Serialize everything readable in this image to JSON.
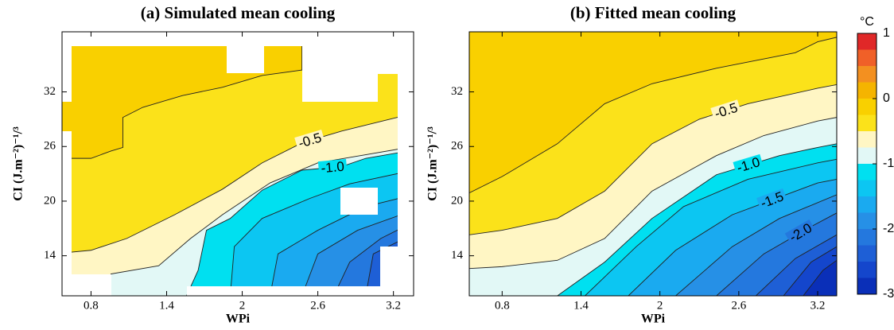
{
  "chart_data": [
    {
      "type": "contour",
      "title": "(a) Simulated mean cooling",
      "xlabel": "WPi",
      "ylabel": "CI (J.m⁻²)⁻¹/³",
      "xlim": [
        0.57,
        3.36
      ],
      "ylim": [
        9.6,
        38.6
      ],
      "xticks": [
        0.8,
        1.4,
        2,
        2.6,
        3.2
      ],
      "yticks": [
        14,
        20,
        26,
        32
      ],
      "contours": [
        {
          "level": -0.25,
          "x": [
            0.57,
            0.8,
            0.958,
            1.053,
            1.053,
            1.21,
            1.526,
            1.842,
            2.158,
            2.474,
            2.474,
            3.36
          ],
          "y": [
            24.7,
            24.7,
            25.5,
            25.9,
            29.2,
            30.3,
            31.6,
            32.5,
            33.8,
            34.4,
            38.6,
            38.6
          ]
        },
        {
          "level": -0.5,
          "x": [
            0.57,
            0.8,
            1.084,
            1.463,
            1.842,
            2.158,
            2.474,
            2.79,
            3.232,
            3.36
          ],
          "y": [
            14.3,
            14.6,
            15.9,
            18.5,
            21.3,
            24.2,
            26.4,
            27.7,
            29.2,
            29.5
          ]
        },
        {
          "level": -0.75,
          "x": [
            0.958,
            0.958,
            1.337,
            1.59,
            1.842,
            2.221,
            2.6,
            2.98,
            3.36
          ],
          "y": [
            9.6,
            12,
            12.9,
            15.9,
            18.5,
            22,
            24.2,
            25.1,
            26
          ]
        },
        {
          "level": -1,
          "x": [
            1.558,
            1.65,
            1.716,
            1.905,
            2.158,
            2.474,
            2.79,
            2.98,
            3.36
          ],
          "y": [
            9.6,
            12.4,
            16.8,
            18.1,
            21.2,
            23.4,
            23.8,
            24.7,
            25.6
          ]
        },
        {
          "level": -1.25,
          "x": [
            1.905,
            1.937,
            2.158,
            2.537,
            2.853,
            3.36
          ],
          "y": [
            9.6,
            15,
            18.1,
            20.3,
            21.9,
            23.4
          ]
        },
        {
          "level": -1.5,
          "x": [
            2.221,
            2.284,
            2.6,
            2.98,
            3.36
          ],
          "y": [
            9.6,
            14.2,
            16.8,
            19.4,
            20.7
          ]
        },
        {
          "level": -1.75,
          "x": [
            2.474,
            2.6,
            2.916,
            3.36
          ],
          "y": [
            9.6,
            14.2,
            16.8,
            19
          ]
        },
        {
          "level": -2,
          "x": [
            2.727,
            2.853,
            3.1,
            3.36
          ],
          "y": [
            9.6,
            13.3,
            15.9,
            17.7
          ]
        },
        {
          "level": -2.25,
          "x": [
            2.98,
            3.04,
            3.36
          ],
          "y": [
            9.6,
            14.2,
            16.4
          ]
        },
        {
          "level": -2.5,
          "x": [
            3.17,
            3.232,
            3.36
          ],
          "y": [
            9.6,
            12,
            13.3
          ]
        }
      ],
      "contour_labels": [
        {
          "value": -0.5,
          "label": "-0.5"
        },
        {
          "value": -1,
          "label": "-1.0"
        }
      ]
    },
    {
      "type": "contour",
      "title": "(b) Fitted mean cooling",
      "xlabel": "WPi",
      "ylabel": "CI (J.m⁻²)⁻¹/³",
      "xlim": [
        0.55,
        3.345
      ],
      "ylim": [
        9.6,
        38.6
      ],
      "xticks": [
        0.8,
        1.4,
        2,
        2.6,
        3.2
      ],
      "yticks": [
        14,
        20,
        26,
        32
      ],
      "contours": [
        {
          "level": -0.25,
          "x": [
            0.55,
            0.8,
            1.22,
            1.58,
            1.94,
            2.43,
            3.03,
            3.2,
            3.345
          ],
          "y": [
            20.9,
            22.7,
            26.3,
            30.7,
            32.9,
            34.6,
            36.3,
            37.5,
            38
          ]
        },
        {
          "level": -0.5,
          "x": [
            0.55,
            0.8,
            1.22,
            1.58,
            1.94,
            2.3,
            2.67,
            3.2,
            3.345
          ],
          "y": [
            16.3,
            16.8,
            18.1,
            21.1,
            26.3,
            29,
            30.7,
            32.4,
            32.8
          ]
        },
        {
          "level": -0.75,
          "x": [
            0.55,
            0.8,
            1.22,
            1.58,
            1.94,
            2.43,
            2.79,
            3.2,
            3.345
          ],
          "y": [
            12.6,
            12.8,
            13.5,
            15.9,
            21.1,
            25,
            27.2,
            28.8,
            29.2
          ]
        },
        {
          "level": -1,
          "x": [
            1.22,
            1.58,
            1.94,
            2.43,
            2.91,
            3.2,
            3.345
          ],
          "y": [
            9.6,
            13.3,
            18.1,
            22.9,
            25,
            25.9,
            26.3
          ]
        },
        {
          "level": -1.25,
          "x": [
            1.43,
            1.82,
            2.18,
            2.67,
            3.2,
            3.345
          ],
          "y": [
            9.6,
            15,
            19.4,
            22.4,
            24.2,
            24.6
          ]
        },
        {
          "level": -1.5,
          "x": [
            1.76,
            2.12,
            2.55,
            3.2,
            3.345
          ],
          "y": [
            9.6,
            14.6,
            18.5,
            22,
            22.4
          ]
        },
        {
          "level": -1.75,
          "x": [
            2.12,
            2.55,
            2.91,
            3.345
          ],
          "y": [
            9.6,
            15,
            18.1,
            20.7
          ]
        },
        {
          "level": -2,
          "x": [
            2.43,
            2.79,
            3.15,
            3.345
          ],
          "y": [
            9.6,
            14.2,
            17.2,
            18.7
          ]
        },
        {
          "level": -2.25,
          "x": [
            2.73,
            3.03,
            3.345
          ],
          "y": [
            9.6,
            13.7,
            16.3
          ]
        },
        {
          "level": -2.5,
          "x": [
            2.94,
            3.15,
            3.345
          ],
          "y": [
            9.6,
            13.3,
            15
          ]
        },
        {
          "level": -2.75,
          "x": [
            3.09,
            3.24,
            3.345
          ],
          "y": [
            9.6,
            12.4,
            13.5
          ]
        }
      ],
      "contour_labels": [
        {
          "value": -0.5,
          "label": "-0.5"
        },
        {
          "value": -1,
          "label": "-1.0"
        },
        {
          "value": -1.5,
          "label": "-1.5"
        },
        {
          "value": -2,
          "label": "-2.0"
        }
      ]
    }
  ],
  "colorbar": {
    "title": "°C",
    "lim": [
      -3,
      1
    ],
    "ticks": [
      1,
      0,
      -1,
      -2,
      -3
    ],
    "levels": [
      -3,
      -2.75,
      -2.5,
      -2.25,
      -2,
      -1.75,
      -1.5,
      -1.25,
      -1,
      -0.75,
      -0.5,
      -0.25,
      0,
      0.25,
      0.5,
      0.75,
      1
    ],
    "colors": [
      "#0a2fb8",
      "#1446cc",
      "#1e5fd6",
      "#2478de",
      "#2690e6",
      "#1aaaf0",
      "#0cc6f2",
      "#00e0f0",
      "#e2f8f6",
      "#fff6c4",
      "#fbe21a",
      "#f9d000",
      "#f5b400",
      "#f39020",
      "#f06028",
      "#e02828"
    ]
  }
}
